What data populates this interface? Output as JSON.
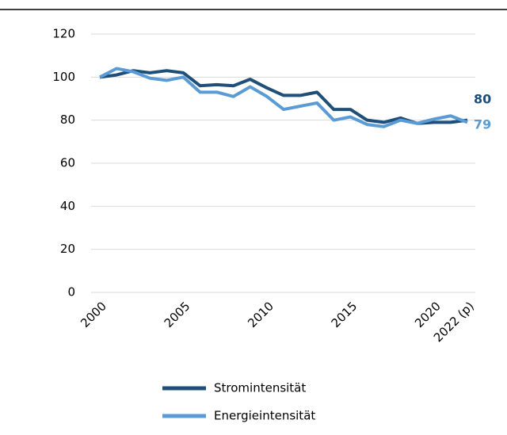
{
  "chart_data": {
    "type": "line",
    "x": [
      2000,
      2001,
      2002,
      2003,
      2004,
      2005,
      2006,
      2007,
      2008,
      2009,
      2010,
      2011,
      2012,
      2013,
      2014,
      2015,
      2016,
      2017,
      2018,
      2019,
      2020,
      2021,
      2022
    ],
    "series": [
      {
        "name": "Stromintensität",
        "color": "#1f4e79",
        "values": [
          100,
          101,
          103,
          102,
          103,
          102,
          96,
          96.5,
          96,
          99,
          95,
          91.5,
          91.5,
          93,
          85,
          85,
          80,
          79,
          81,
          78.5,
          79,
          79,
          80
        ]
      },
      {
        "name": "Energieintensität",
        "color": "#5b9bd5",
        "values": [
          100,
          104,
          102.5,
          99.5,
          98.5,
          100,
          93,
          93,
          91,
          95.5,
          91,
          85,
          86.5,
          88,
          80,
          81.5,
          78,
          77,
          80,
          78.5,
          80.5,
          82,
          79
        ]
      }
    ],
    "xlim": [
      2000,
      2022
    ],
    "xticks": [
      2000,
      2005,
      2010,
      2015,
      2020,
      {
        "value": 2022,
        "label": "2022 (p)"
      }
    ],
    "ylim": [
      0,
      120
    ],
    "yticks": [
      0,
      20,
      40,
      60,
      80,
      100,
      120
    ],
    "grid": true
  }
}
